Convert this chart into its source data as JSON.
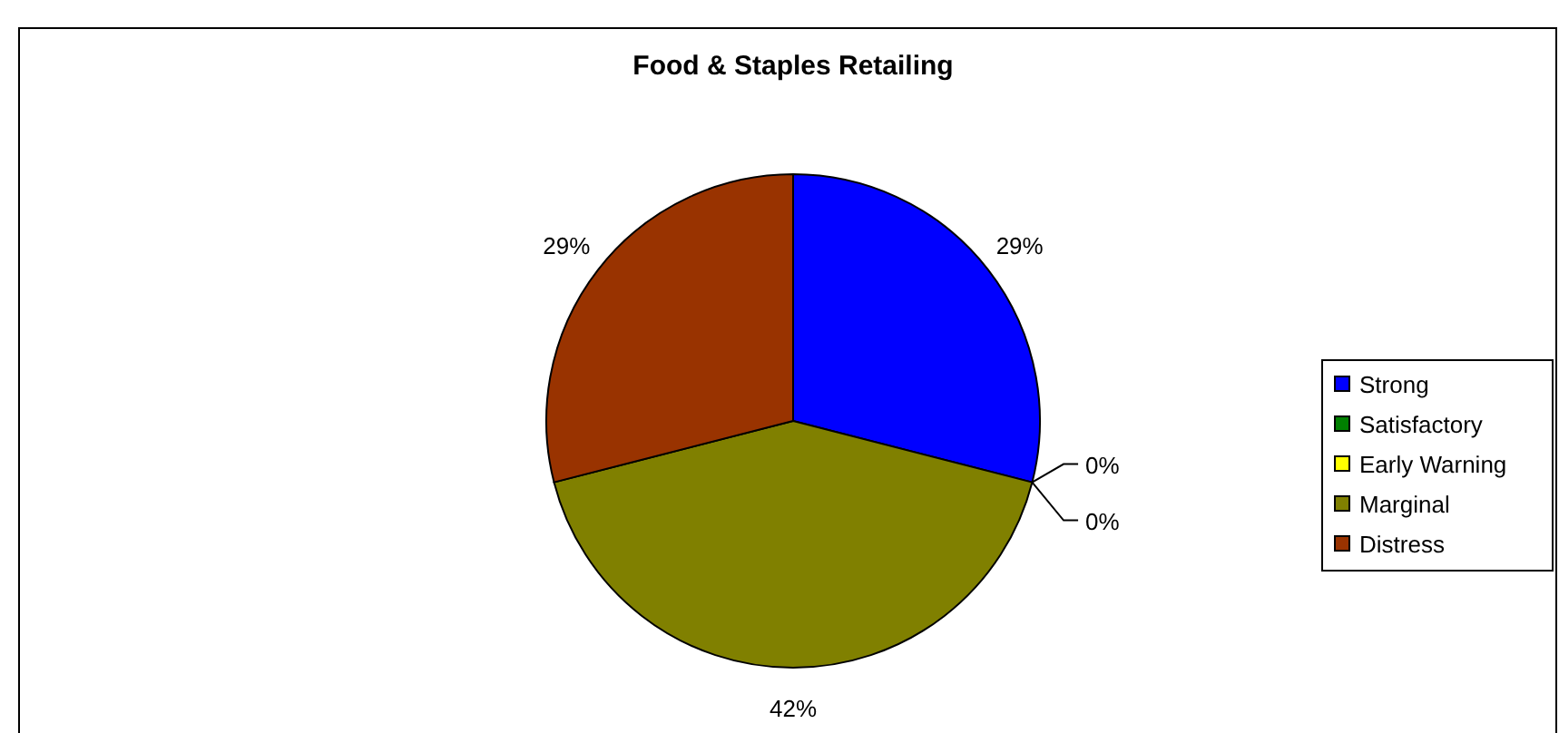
{
  "chart_data": {
    "type": "pie",
    "title": "Food & Staples Retailing",
    "categories": [
      "Strong",
      "Satisfactory",
      "Early Warning",
      "Marginal",
      "Distress"
    ],
    "values": [
      29,
      0,
      0,
      42,
      29
    ],
    "colors": [
      "#0000ff",
      "#008000",
      "#ffff00",
      "#808000",
      "#993300"
    ],
    "value_labels": [
      "29%",
      "0%",
      "0%",
      "42%",
      "29%"
    ],
    "legend": "right"
  }
}
